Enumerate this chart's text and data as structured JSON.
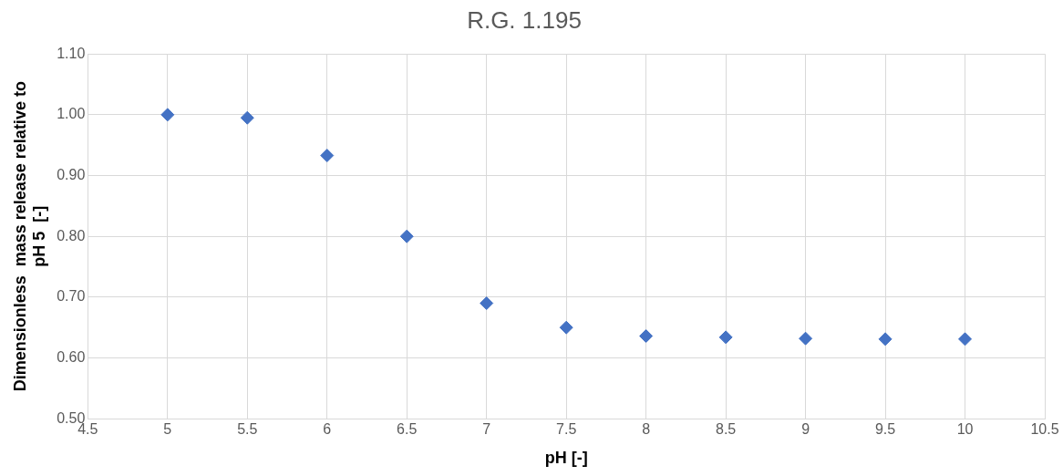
{
  "chart_data": {
    "type": "scatter",
    "title": "R.G. 1.195",
    "xlabel": "pH [-]",
    "ylabel": "Dimensionless  mass release relative to pH 5  [-]",
    "x": [
      5,
      5.5,
      6,
      6.5,
      7,
      7.5,
      8,
      8.5,
      9,
      9.5,
      10
    ],
    "series": [
      {
        "color": "#4472c4",
        "values": [
          1.0,
          0.995,
          0.933,
          0.8,
          0.69,
          0.65,
          0.636,
          0.634,
          0.632,
          0.631,
          0.631
        ]
      }
    ],
    "xlim": [
      4.5,
      10.5
    ],
    "xticks": [
      4.5,
      5,
      5.5,
      6,
      6.5,
      7,
      7.5,
      8,
      8.5,
      9,
      9.5,
      10,
      10.5
    ],
    "ylim": [
      0.5,
      1.1
    ],
    "yticks": [
      {
        "value": 0.5,
        "label": "0.50"
      },
      {
        "value": 0.6,
        "label": "0.60"
      },
      {
        "value": 0.7,
        "label": "0.70"
      },
      {
        "value": 0.8,
        "label": "0.80"
      },
      {
        "value": 0.9,
        "label": "0.90"
      },
      {
        "value": 1.0,
        "label": "1.00"
      },
      {
        "value": 1.1,
        "label": "1.10"
      }
    ],
    "grid": true,
    "legend": false,
    "marker": "diamond"
  }
}
